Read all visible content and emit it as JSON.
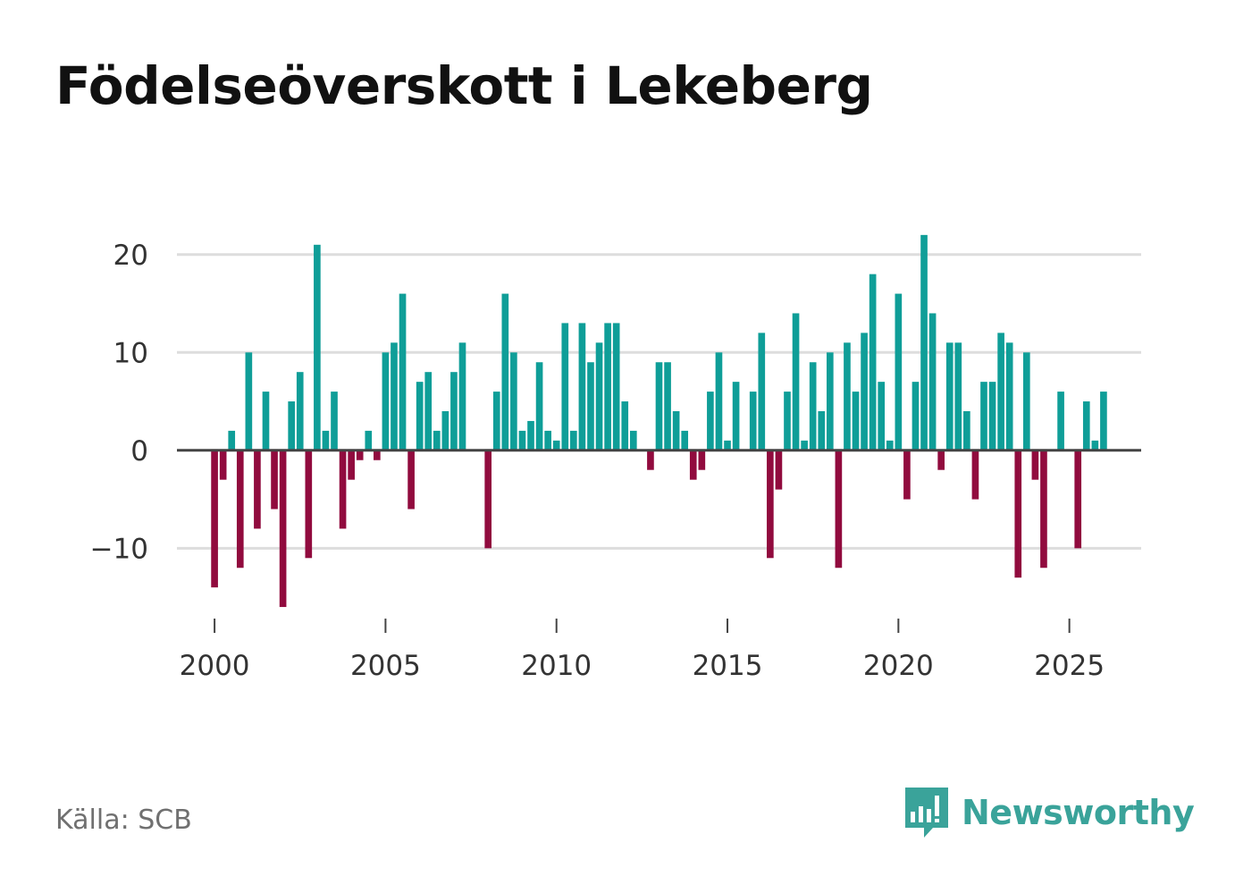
{
  "title": "Födelseöverskott i Lekeberg",
  "source": "Källa: SCB",
  "brand": {
    "name": "Newsworthy",
    "icon": "newsworthy-logo-icon"
  },
  "colors": {
    "positive": "#0f9e98",
    "negative": "#910b3e",
    "grid": "#dddddd",
    "zero_line": "#444444",
    "brand": "#3aa39a"
  },
  "chart_data": {
    "type": "bar",
    "title": "Födelseöverskott i Lekeberg",
    "xlabel": "",
    "ylabel": "",
    "ylim": [
      -17,
      25
    ],
    "xlim": [
      1998.9,
      2027.1
    ],
    "yticks": [
      20,
      10,
      0,
      -10
    ],
    "ytick_labels": [
      "20",
      "10",
      "0",
      "−10"
    ],
    "xticks": [
      2000,
      2005,
      2010,
      2015,
      2020,
      2025
    ],
    "xtick_labels": [
      "2000",
      "2005",
      "2010",
      "2015",
      "2020",
      "2025"
    ],
    "start_year": 2000,
    "periods_per_year": 4,
    "values": [
      -14,
      -3,
      2,
      -12,
      10,
      -8,
      6,
      -6,
      -16,
      5,
      8,
      -11,
      21,
      2,
      6,
      -8,
      -3,
      -1,
      2,
      -1,
      10,
      11,
      16,
      -6,
      7,
      8,
      2,
      4,
      8,
      11,
      0,
      0,
      -10,
      6,
      16,
      10,
      2,
      3,
      9,
      2,
      1,
      13,
      2,
      13,
      9,
      11,
      13,
      13,
      5,
      2,
      0,
      -2,
      9,
      9,
      4,
      2,
      -3,
      -2,
      6,
      10,
      1,
      7,
      0,
      6,
      12,
      -11,
      -4,
      6,
      14,
      1,
      9,
      4,
      10,
      -12,
      11,
      6,
      12,
      18,
      7,
      1,
      16,
      -5,
      7,
      22,
      14,
      -2,
      11,
      11,
      4,
      -5,
      7,
      7,
      12,
      11,
      -13,
      10,
      -3,
      -12,
      0,
      6,
      0,
      -10,
      5,
      1,
      6
    ]
  }
}
